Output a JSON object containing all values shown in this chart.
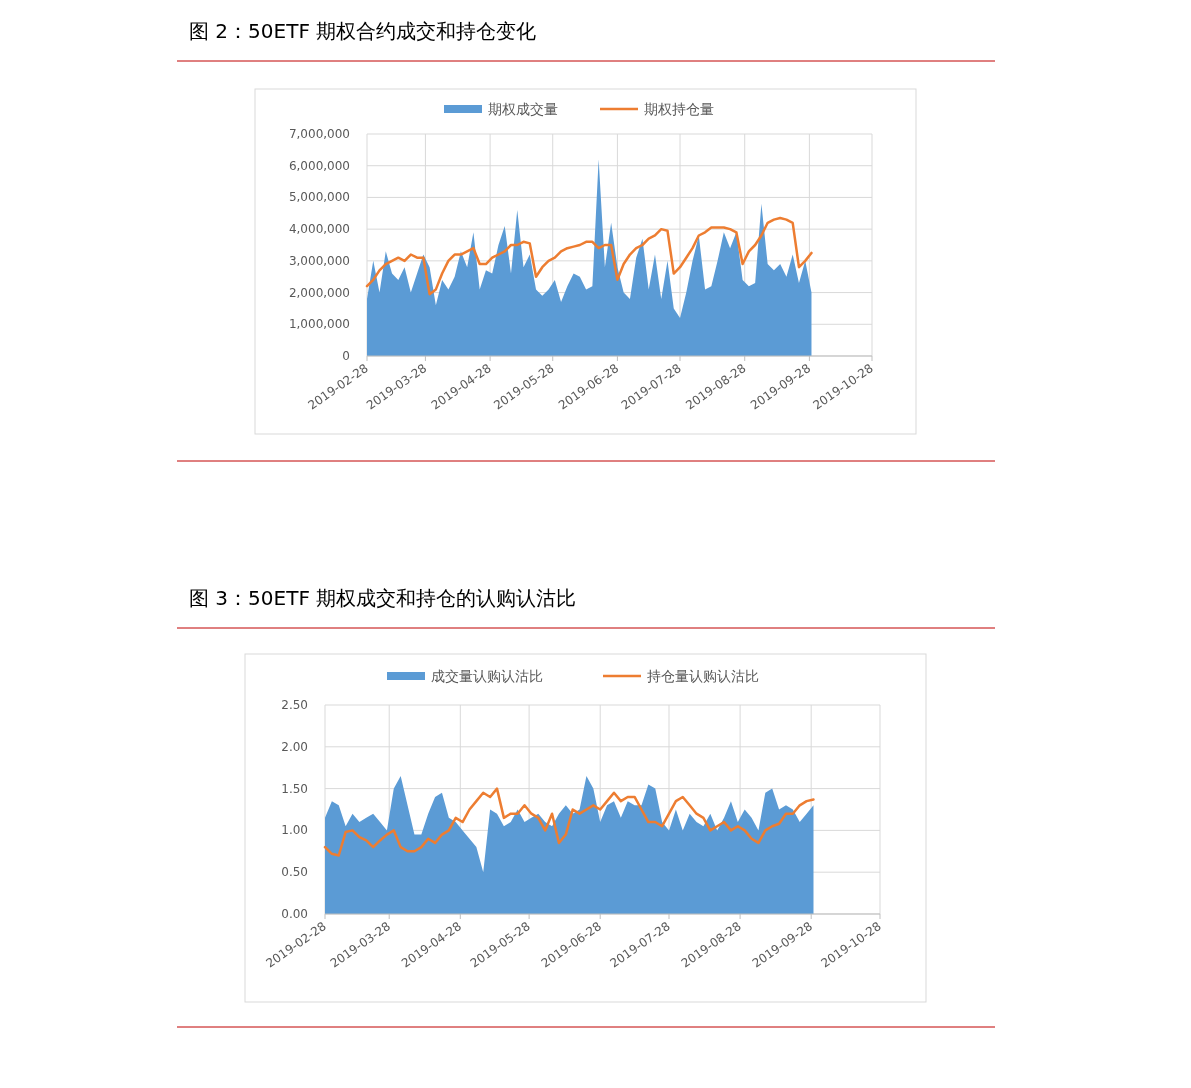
{
  "chart_data": [
    {
      "type": "area",
      "title": "图 2：50ETF 期权合约成交和持仓变化",
      "legend": "top",
      "grid": true,
      "x": [
        "2019-02-28",
        "2019-03-03",
        "2019-03-06",
        "2019-03-09",
        "2019-03-12",
        "2019-03-15",
        "2019-03-18",
        "2019-03-21",
        "2019-03-24",
        "2019-03-27",
        "2019-03-30",
        "2019-04-02",
        "2019-04-05",
        "2019-04-08",
        "2019-04-11",
        "2019-04-14",
        "2019-04-17",
        "2019-04-20",
        "2019-04-23",
        "2019-04-26",
        "2019-04-29",
        "2019-05-02",
        "2019-05-05",
        "2019-05-08",
        "2019-05-11",
        "2019-05-14",
        "2019-05-17",
        "2019-05-20",
        "2019-05-23",
        "2019-05-26",
        "2019-05-29",
        "2019-06-01",
        "2019-06-04",
        "2019-06-07",
        "2019-06-10",
        "2019-06-13",
        "2019-06-16",
        "2019-06-19",
        "2019-06-22",
        "2019-06-25",
        "2019-06-28",
        "2019-07-01",
        "2019-07-04",
        "2019-07-07",
        "2019-07-10",
        "2019-07-13",
        "2019-07-16",
        "2019-07-19",
        "2019-07-22",
        "2019-07-25",
        "2019-07-28",
        "2019-07-31",
        "2019-08-03",
        "2019-08-06",
        "2019-08-09",
        "2019-08-12",
        "2019-08-15",
        "2019-08-18",
        "2019-08-21",
        "2019-08-24",
        "2019-08-27",
        "2019-08-30",
        "2019-09-02",
        "2019-09-05",
        "2019-09-08",
        "2019-09-11",
        "2019-09-14",
        "2019-09-17",
        "2019-09-20",
        "2019-09-23",
        "2019-09-26",
        "2019-09-29"
      ],
      "xlim": [
        "2019-02-28",
        "2019-10-28"
      ],
      "xticks": [
        "2019-02-28",
        "2019-03-28",
        "2019-04-28",
        "2019-05-28",
        "2019-06-28",
        "2019-07-28",
        "2019-08-28",
        "2019-09-28",
        "2019-10-28"
      ],
      "ylim": [
        0,
        7000000
      ],
      "yticks": [
        {
          "value": 0,
          "label": "0"
        },
        {
          "value": 1000000,
          "label": "1,000,000"
        },
        {
          "value": 2000000,
          "label": "2,000,000"
        },
        {
          "value": 3000000,
          "label": "3,000,000"
        },
        {
          "value": 4000000,
          "label": "4,000,000"
        },
        {
          "value": 5000000,
          "label": "5,000,000"
        },
        {
          "value": 6000000,
          "label": "6,000,000"
        },
        {
          "value": 7000000,
          "label": "7,000,000"
        }
      ],
      "series": [
        {
          "name": "期权成交量",
          "color": "#5b9bd5",
          "values": [
            1800000,
            3000000,
            2000000,
            3300000,
            2600000,
            2400000,
            2800000,
            2000000,
            2600000,
            3200000,
            2800000,
            1600000,
            2400000,
            2100000,
            2500000,
            3300000,
            2800000,
            3900000,
            2100000,
            2700000,
            2600000,
            3500000,
            4100000,
            2600000,
            4600000,
            2800000,
            3200000,
            2100000,
            1900000,
            2100000,
            2400000,
            1700000,
            2200000,
            2600000,
            2500000,
            2100000,
            2200000,
            6200000,
            2800000,
            4200000,
            2800000,
            2000000,
            1800000,
            3100000,
            3700000,
            2100000,
            3200000,
            1800000,
            3000000,
            1500000,
            1200000,
            2000000,
            3000000,
            3800000,
            2100000,
            2200000,
            3000000,
            3900000,
            3400000,
            3900000,
            2400000,
            2200000,
            2300000,
            4800000,
            2900000,
            2700000,
            2900000,
            2500000,
            3200000,
            2300000,
            3000000,
            2000000
          ]
        },
        {
          "name": "期权持仓量",
          "type": "line",
          "color": "#ed7d31",
          "values": [
            2200000,
            2400000,
            2700000,
            2900000,
            3000000,
            3100000,
            3000000,
            3200000,
            3100000,
            3100000,
            1950000,
            2100000,
            2600000,
            3000000,
            3200000,
            3200000,
            3300000,
            3400000,
            2900000,
            2900000,
            3100000,
            3200000,
            3300000,
            3500000,
            3500000,
            3600000,
            3550000,
            2500000,
            2800000,
            3000000,
            3100000,
            3300000,
            3400000,
            3450000,
            3500000,
            3600000,
            3600000,
            3400000,
            3500000,
            3500000,
            2400000,
            2900000,
            3200000,
            3400000,
            3500000,
            3700000,
            3800000,
            4000000,
            3950000,
            2600000,
            2800000,
            3100000,
            3400000,
            3800000,
            3900000,
            4050000,
            4050000,
            4050000,
            4000000,
            3900000,
            2900000,
            3300000,
            3500000,
            3800000,
            4200000,
            4300000,
            4350000,
            4300000,
            4200000,
            2800000,
            3000000,
            3250000
          ]
        }
      ]
    },
    {
      "type": "area",
      "title": "图 3：50ETF 期权成交和持仓的认购认沽比",
      "legend": "top",
      "grid": true,
      "x": [
        "2019-02-28",
        "2019-03-03",
        "2019-03-06",
        "2019-03-09",
        "2019-03-12",
        "2019-03-15",
        "2019-03-18",
        "2019-03-21",
        "2019-03-24",
        "2019-03-27",
        "2019-03-30",
        "2019-04-02",
        "2019-04-05",
        "2019-04-08",
        "2019-04-11",
        "2019-04-14",
        "2019-04-17",
        "2019-04-20",
        "2019-04-23",
        "2019-04-26",
        "2019-04-29",
        "2019-05-02",
        "2019-05-05",
        "2019-05-08",
        "2019-05-11",
        "2019-05-14",
        "2019-05-17",
        "2019-05-20",
        "2019-05-23",
        "2019-05-26",
        "2019-05-29",
        "2019-06-01",
        "2019-06-04",
        "2019-06-07",
        "2019-06-10",
        "2019-06-13",
        "2019-06-16",
        "2019-06-19",
        "2019-06-22",
        "2019-06-25",
        "2019-06-28",
        "2019-07-01",
        "2019-07-04",
        "2019-07-07",
        "2019-07-10",
        "2019-07-13",
        "2019-07-16",
        "2019-07-19",
        "2019-07-22",
        "2019-07-25",
        "2019-07-28",
        "2019-07-31",
        "2019-08-03",
        "2019-08-06",
        "2019-08-09",
        "2019-08-12",
        "2019-08-15",
        "2019-08-18",
        "2019-08-21",
        "2019-08-24",
        "2019-08-27",
        "2019-08-30",
        "2019-09-02",
        "2019-09-05",
        "2019-09-08",
        "2019-09-11",
        "2019-09-14",
        "2019-09-17",
        "2019-09-20",
        "2019-09-23",
        "2019-09-26",
        "2019-09-29"
      ],
      "xlim": [
        "2019-02-28",
        "2019-10-28"
      ],
      "xticks": [
        "2019-02-28",
        "2019-03-28",
        "2019-04-28",
        "2019-05-28",
        "2019-06-28",
        "2019-07-28",
        "2019-08-28",
        "2019-09-28",
        "2019-10-28"
      ],
      "ylim": [
        0,
        2.5
      ],
      "yticks": [
        {
          "value": 0,
          "label": "0.00"
        },
        {
          "value": 0.5,
          "label": "0.50"
        },
        {
          "value": 1,
          "label": "1.00"
        },
        {
          "value": 1.5,
          "label": "1.50"
        },
        {
          "value": 2,
          "label": "2.00"
        },
        {
          "value": 2.5,
          "label": "2.50"
        }
      ],
      "series": [
        {
          "name": "成交量认购认沽比",
          "color": "#5b9bd5",
          "values": [
            1.15,
            1.35,
            1.3,
            1.05,
            1.2,
            1.1,
            1.15,
            1.2,
            1.1,
            1.0,
            1.5,
            1.65,
            1.3,
            0.95,
            0.95,
            1.2,
            1.4,
            1.45,
            1.15,
            1.1,
            1.0,
            0.9,
            0.8,
            0.5,
            1.25,
            1.2,
            1.05,
            1.1,
            1.25,
            1.1,
            1.15,
            1.2,
            1.1,
            1.05,
            1.2,
            1.3,
            1.2,
            1.25,
            1.65,
            1.5,
            1.1,
            1.3,
            1.35,
            1.15,
            1.35,
            1.3,
            1.3,
            1.55,
            1.5,
            1.1,
            1.0,
            1.25,
            1.0,
            1.2,
            1.1,
            1.05,
            1.2,
            1.0,
            1.15,
            1.35,
            1.1,
            1.25,
            1.15,
            1.0,
            1.45,
            1.5,
            1.25,
            1.3,
            1.25,
            1.1,
            1.2,
            1.3
          ]
        },
        {
          "name": "持仓量认购认沽比",
          "type": "line",
          "color": "#ed7d31",
          "values": [
            0.8,
            0.72,
            0.7,
            0.98,
            1.0,
            0.92,
            0.88,
            0.8,
            0.88,
            0.95,
            1.0,
            0.8,
            0.75,
            0.75,
            0.8,
            0.9,
            0.85,
            0.95,
            1.0,
            1.15,
            1.1,
            1.25,
            1.35,
            1.45,
            1.4,
            1.5,
            1.15,
            1.2,
            1.2,
            1.3,
            1.2,
            1.15,
            1.0,
            1.2,
            0.85,
            0.95,
            1.25,
            1.2,
            1.25,
            1.3,
            1.25,
            1.35,
            1.45,
            1.35,
            1.4,
            1.4,
            1.25,
            1.1,
            1.1,
            1.05,
            1.2,
            1.35,
            1.4,
            1.3,
            1.2,
            1.15,
            1.0,
            1.05,
            1.1,
            1.0,
            1.05,
            1.0,
            0.9,
            0.85,
            1.0,
            1.05,
            1.08,
            1.2,
            1.2,
            1.3,
            1.35,
            1.37
          ]
        }
      ]
    }
  ]
}
